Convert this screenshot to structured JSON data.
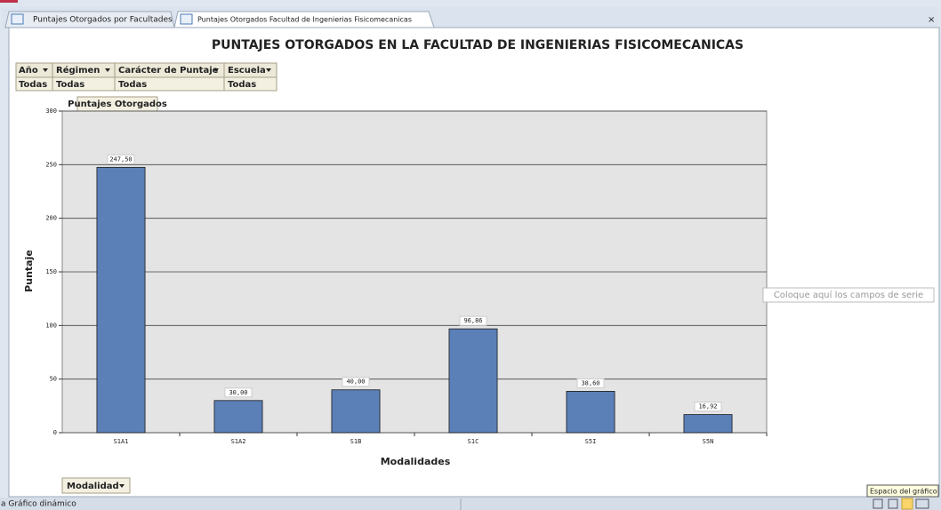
{
  "tabs": [
    "Puntajes Otorgados por Facultades",
    "Puntajes Otorgados Facultad de Ingenierias Fisicomecanicas"
  ],
  "close": "×",
  "filters": {
    "headers": [
      "Año",
      "Régimen",
      "Carácter de Puntaje",
      "Escuela"
    ],
    "values": [
      "Todas",
      "Todas",
      "Todas",
      "Todas"
    ]
  },
  "field_buttons": {
    "data": "Puntajes Otorgados",
    "category": "Modalidad",
    "series_drop": "Coloque aquí los campos de serie"
  },
  "status_bar": "a Gráfico dinámico",
  "tooltip": "Espacio del gráfico",
  "chart_data": {
    "type": "bar",
    "title": "PUNTAJES OTORGADOS EN LA FACULTAD DE INGENIERIAS FISICOMECANICAS",
    "x_label": "Modalidades",
    "y_label": "Puntaje",
    "categories": [
      "S1A1",
      "S1A2",
      "S1B",
      "S1C",
      "S5I",
      "S5N"
    ],
    "values": [
      247.5,
      30,
      40,
      96.86,
      38.6,
      16.92
    ],
    "value_labels": [
      "247,50",
      "30,00",
      "40,00",
      "96,86",
      "38,60",
      "16,92"
    ],
    "color": "#5b7fb7",
    "ylim": [
      0,
      300
    ],
    "yticks": [
      0,
      50,
      100,
      150,
      200,
      250,
      300
    ],
    "grid": true
  }
}
